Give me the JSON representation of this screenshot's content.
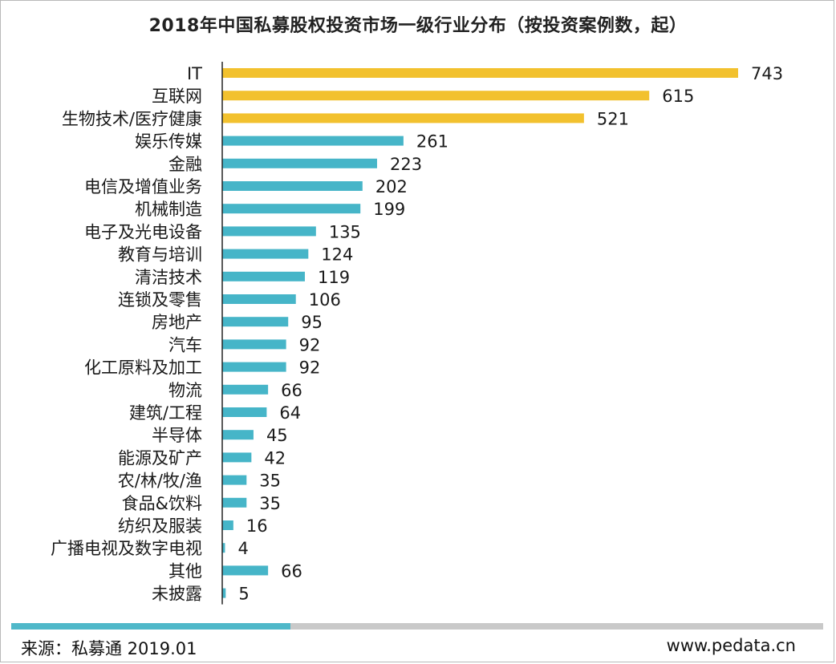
{
  "title": "2018年中国私募股权投资市场一级行业分布（按投资案例数，起）",
  "source": "来源：私募通 2019.01",
  "website": "www.pedata.cn",
  "colors": {
    "top3": "#f2c12e",
    "rest": "#46b5c8",
    "axis": "#222222"
  },
  "chart_data": {
    "type": "bar",
    "orientation": "horizontal",
    "title": "2018年中国私募股权投资市场一级行业分布（按投资案例数，起）",
    "xlabel": "",
    "ylabel": "",
    "xlim": [
      0,
      743
    ],
    "grid": false,
    "categories": [
      "IT",
      "互联网",
      "生物技术/医疗健康",
      "娱乐传媒",
      "金融",
      "电信及增值业务",
      "机械制造",
      "电子及光电设备",
      "教育与培训",
      "清洁技术",
      "连锁及零售",
      "房地产",
      "汽车",
      "化工原料及加工",
      "物流",
      "建筑/工程",
      "半导体",
      "能源及矿产",
      "农/林/牧/渔",
      "食品&饮料",
      "纺织及服装",
      "广播电视及数字电视",
      "其他",
      "未披露"
    ],
    "values": [
      743,
      615,
      521,
      261,
      223,
      202,
      199,
      135,
      124,
      119,
      106,
      95,
      92,
      92,
      66,
      64,
      45,
      42,
      35,
      35,
      16,
      4,
      66,
      5
    ],
    "highlight_count": 3
  }
}
